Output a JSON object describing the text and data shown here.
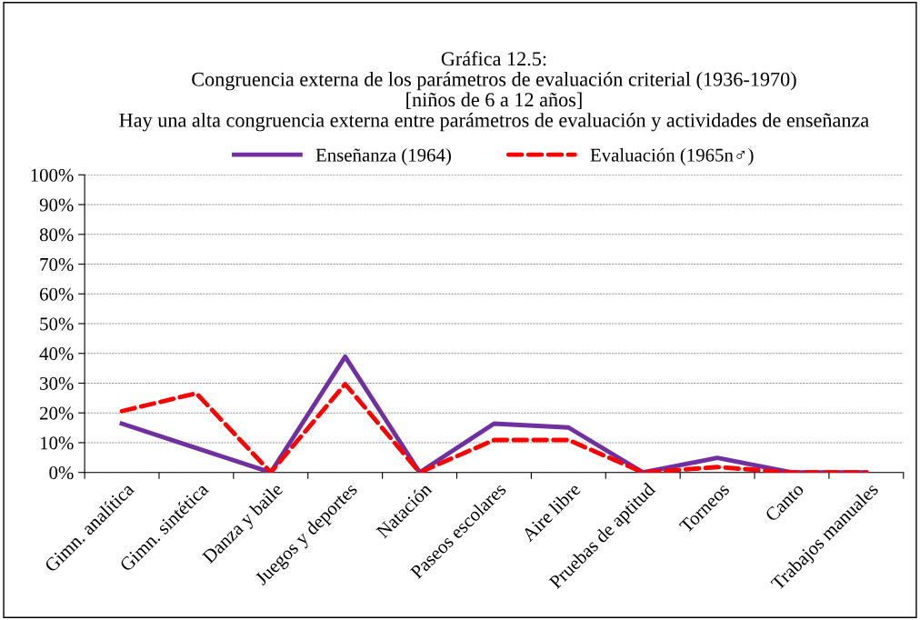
{
  "chart_data": {
    "type": "line",
    "title": "Gráfica 12.5:\nCongruencia externa de los parámetros de evaluación criterial (1936-1970)\n[niños de 6 a 12 años]\nHay una alta congruencia externa entre parámetros de evaluación y actividades de enseñanza",
    "categories": [
      "Gimn. analítica",
      "Gimn. sintética",
      "Danza y baile",
      "Juegos y deportes",
      "Natación",
      "Paseos escolares",
      "Aire libre",
      "Pruebas de aptitud",
      "Torneos",
      "Canto",
      "Trabajos manuales"
    ],
    "series": [
      {
        "name": "Enseñanza (1964)",
        "color": "#7030a0",
        "line_style": "solid",
        "values": [
          16.4,
          8.2,
          0,
          38.9,
          0,
          16.4,
          15.1,
          0,
          4.9,
          0,
          0
        ]
      },
      {
        "name": "Evaluación (1965n♂)",
        "color": "#ff0000",
        "line_style": "dashed",
        "values": [
          20.6,
          26.6,
          0,
          29.7,
          0,
          10.9,
          10.9,
          0,
          1.8,
          0,
          0
        ]
      }
    ],
    "ylim": [
      0,
      100
    ],
    "yticks": [
      {
        "value": 0,
        "label": "0%"
      },
      {
        "value": 10,
        "label": "10%"
      },
      {
        "value": 20,
        "label": "20%"
      },
      {
        "value": 30,
        "label": "30%"
      },
      {
        "value": 40,
        "label": "40%"
      },
      {
        "value": 50,
        "label": "50%"
      },
      {
        "value": 60,
        "label": "60%"
      },
      {
        "value": 70,
        "label": "70%"
      },
      {
        "value": 80,
        "label": "80%"
      },
      {
        "value": 90,
        "label": "90%"
      },
      {
        "value": 100,
        "label": "100%"
      }
    ],
    "grid": "y",
    "legend": "top",
    "marker": "none"
  }
}
